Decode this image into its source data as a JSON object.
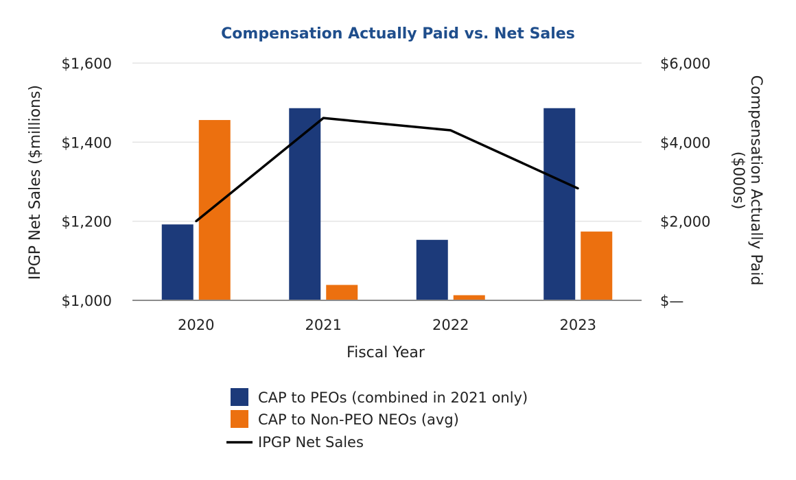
{
  "chart_data": {
    "type": "bar",
    "title": "Compensation Actually Paid vs. Net Sales",
    "xlabel": "Fiscal Year",
    "ylabel_left": "IPGP Net Sales ($millions)",
    "ylabel_right_lines": [
      "Compensation Actually Paid",
      "($000s)"
    ],
    "categories": [
      "2020",
      "2021",
      "2022",
      "2023"
    ],
    "ylim_left": [
      1000,
      1600
    ],
    "left_ticks": [
      1000,
      1200,
      1400,
      1600
    ],
    "left_tick_labels": [
      "$1,000",
      "$1,200",
      "$1,400",
      "$1,600"
    ],
    "ylim_right": [
      0,
      6000
    ],
    "right_ticks": [
      0,
      2000,
      4000,
      6000
    ],
    "right_tick_labels": [
      "$—",
      "$2,000",
      "$4,000",
      "$6,000"
    ],
    "series": [
      {
        "name": "CAP to PEOs (combined in 2021 only)",
        "type": "bar",
        "axis": "right",
        "color": "#1c3a7a",
        "values": [
          1920,
          4860,
          1530,
          4860
        ]
      },
      {
        "name": "CAP to Non-PEO NEOs (avg)",
        "type": "bar",
        "axis": "right",
        "color": "#ec700f",
        "values": [
          4560,
          390,
          130,
          1740
        ]
      },
      {
        "name": "IPGP Net Sales",
        "type": "line",
        "axis": "left",
        "color": "#000000",
        "values": [
          1200,
          1461,
          1430,
          1283
        ]
      }
    ],
    "legend_position": "bottom"
  }
}
